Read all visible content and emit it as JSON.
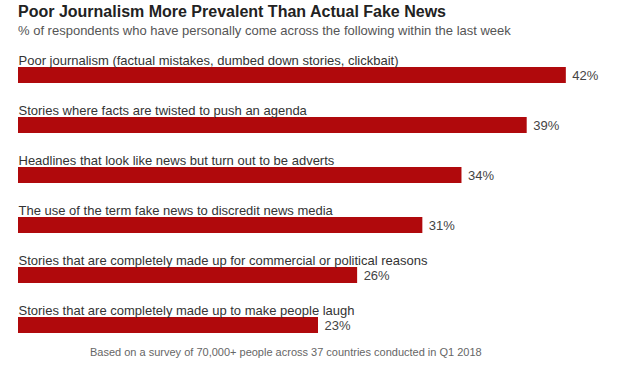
{
  "chart_data": {
    "type": "bar",
    "orientation": "horizontal",
    "title": "Poor Journalism More Prevalent Than Actual Fake News",
    "subtitle": "% of respondents who have personally come across the following within the last week",
    "caption": "Based on a survey of 70,000+ people across 37 countries conducted in Q1 2018",
    "categories": [
      "Poor journalism (factual mistakes, dumbed down stories, clickbait)",
      "Stories where facts are twisted to push an agenda",
      "Headlines that look like news but turn out to be adverts",
      "The use of the term fake news to discredit news media",
      "Stories that are completely made up for commercial or political reasons",
      "Stories that are completely made up to make people laugh"
    ],
    "values": [
      42,
      39,
      34,
      31,
      26,
      23
    ],
    "value_labels": [
      "42%",
      "39%",
      "34%",
      "31%",
      "26%",
      "23%"
    ],
    "data_labels": true,
    "tick_labels": false,
    "color": "#b0090c",
    "xlim": [
      0,
      46
    ]
  }
}
